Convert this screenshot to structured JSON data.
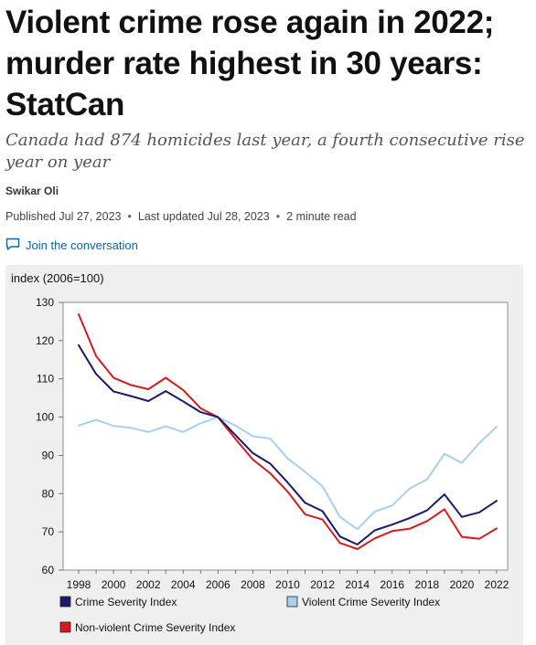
{
  "article": {
    "headline": "Violent crime rose again in 2022; murder rate highest in 30 years: StatCan",
    "subheadline": "Canada had 874 homicides last year, a fourth consecutive rise year on year",
    "author": "Swikar Oli",
    "published": "Published Jul 27, 2023",
    "updated": "Last updated Jul 28, 2023",
    "read_time": "2 minute read",
    "separator": "•",
    "join_label": "Join the conversation"
  },
  "colors": {
    "csi": "#1a1a6e",
    "vcsi": "#a8cfee",
    "nvcsi": "#d41c1c",
    "link": "#0b63a8"
  },
  "icons": {
    "join": "comment-icon"
  },
  "chart_data": {
    "type": "line",
    "ylabel": "index (2006=100)",
    "ylim": [
      60,
      130
    ],
    "yticks": [
      60,
      70,
      80,
      90,
      100,
      110,
      120,
      130
    ],
    "x": [
      1998,
      1999,
      2000,
      2001,
      2002,
      2003,
      2004,
      2005,
      2006,
      2007,
      2008,
      2009,
      2010,
      2011,
      2012,
      2013,
      2014,
      2015,
      2016,
      2017,
      2018,
      2019,
      2020,
      2021,
      2022
    ],
    "xticks": [
      1998,
      2000,
      2002,
      2004,
      2006,
      2008,
      2010,
      2012,
      2014,
      2016,
      2018,
      2020,
      2022
    ],
    "grid": false,
    "legend_position": "bottom",
    "series": [
      {
        "name": "Crime Severity Index",
        "color_key": "csi",
        "values": [
          118.8,
          111.3,
          106.7,
          105.5,
          104.2,
          106.8,
          104.1,
          101.3,
          100.0,
          95.3,
          90.6,
          87.8,
          82.9,
          77.6,
          75.4,
          68.8,
          66.7,
          70.4,
          71.9,
          73.6,
          75.6,
          79.8,
          73.9,
          75.1,
          78.1
        ]
      },
      {
        "name": "Violent Crime Severity Index",
        "color_key": "vcsi",
        "values": [
          97.8,
          99.3,
          97.7,
          97.2,
          96.1,
          97.6,
          96.1,
          98.4,
          100.0,
          97.8,
          95.0,
          94.4,
          89.2,
          85.7,
          81.9,
          73.9,
          70.7,
          75.3,
          76.9,
          81.3,
          83.7,
          90.4,
          88.0,
          93.2,
          97.5
        ]
      },
      {
        "name": "Non-violent Crime Severity Index",
        "color_key": "nvcsi",
        "values": [
          126.9,
          116.0,
          110.3,
          108.4,
          107.3,
          110.3,
          107.1,
          102.3,
          100.0,
          94.3,
          88.9,
          85.3,
          80.5,
          74.6,
          73.2,
          67.1,
          65.5,
          68.3,
          70.2,
          70.8,
          72.8,
          75.9,
          68.7,
          68.2,
          70.9
        ]
      }
    ]
  }
}
